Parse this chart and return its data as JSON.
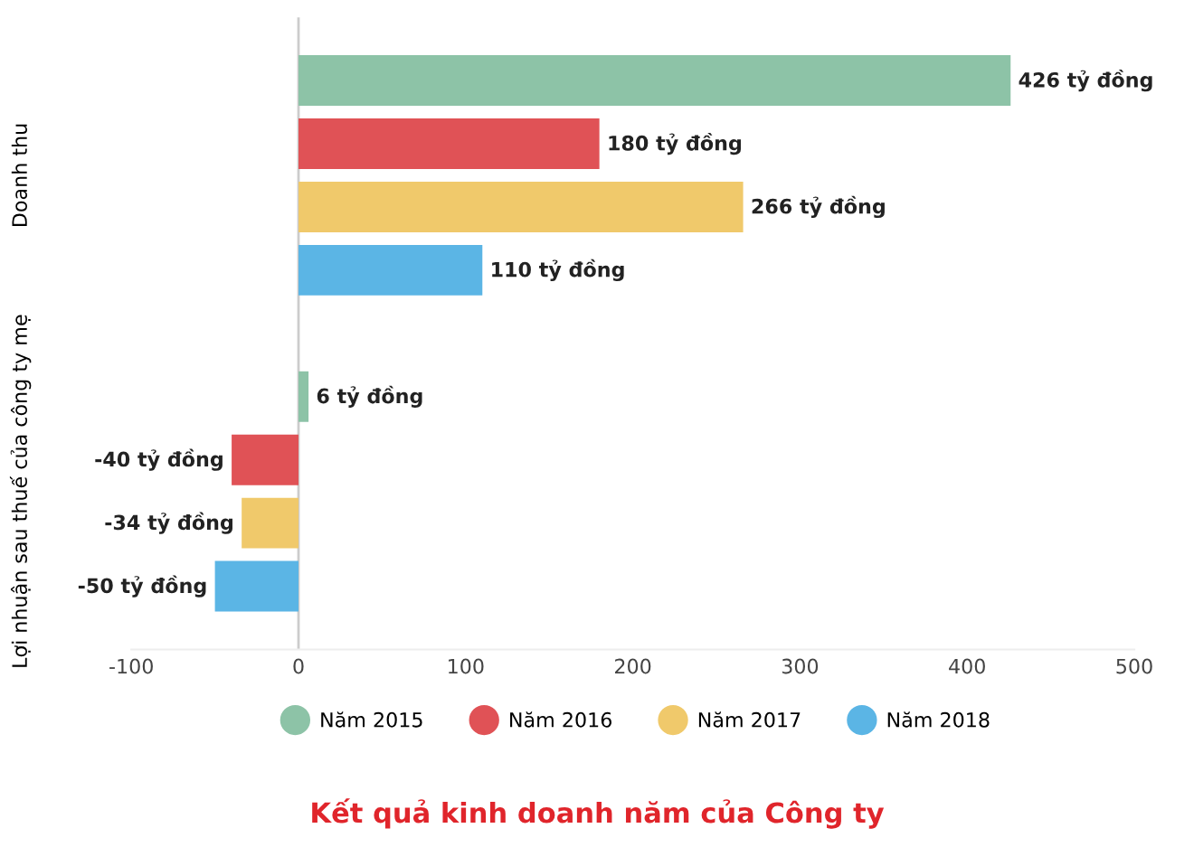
{
  "chart_data": {
    "type": "bar",
    "orientation": "horizontal",
    "title": "Kết quả kinh doanh năm của Công ty",
    "categories": [
      "Doanh thu",
      "Lợi nhuận sau thuế của công ty mẹ"
    ],
    "series": [
      {
        "name": "Năm 2015",
        "color": "#8dc3a7",
        "values": [
          426,
          6
        ],
        "value_labels": [
          "426 tỷ đồng",
          "6 tỷ đồng"
        ]
      },
      {
        "name": "Năm 2016",
        "color": "#e05256",
        "values": [
          180,
          -40
        ],
        "value_labels": [
          "180 tỷ đồng",
          "-40 tỷ đồng"
        ]
      },
      {
        "name": "Năm 2017",
        "color": "#f0c96b",
        "values": [
          266,
          -34
        ],
        "value_labels": [
          "266 tỷ đồng",
          "-34 tỷ đồng"
        ]
      },
      {
        "name": "Năm 2018",
        "color": "#5bb5e5",
        "values": [
          110,
          -50
        ],
        "value_labels": [
          "110 tỷ đồng",
          "-50 tỷ đồng"
        ]
      }
    ],
    "xlim": [
      -100,
      500
    ],
    "xticks": [
      -100,
      0,
      100,
      200,
      300,
      400,
      500
    ],
    "grid": false,
    "ref_lines": [
      {
        "axis": "x",
        "value": 0,
        "color": "#cccccc"
      }
    ],
    "legend": "bottom",
    "marker": "circle"
  }
}
